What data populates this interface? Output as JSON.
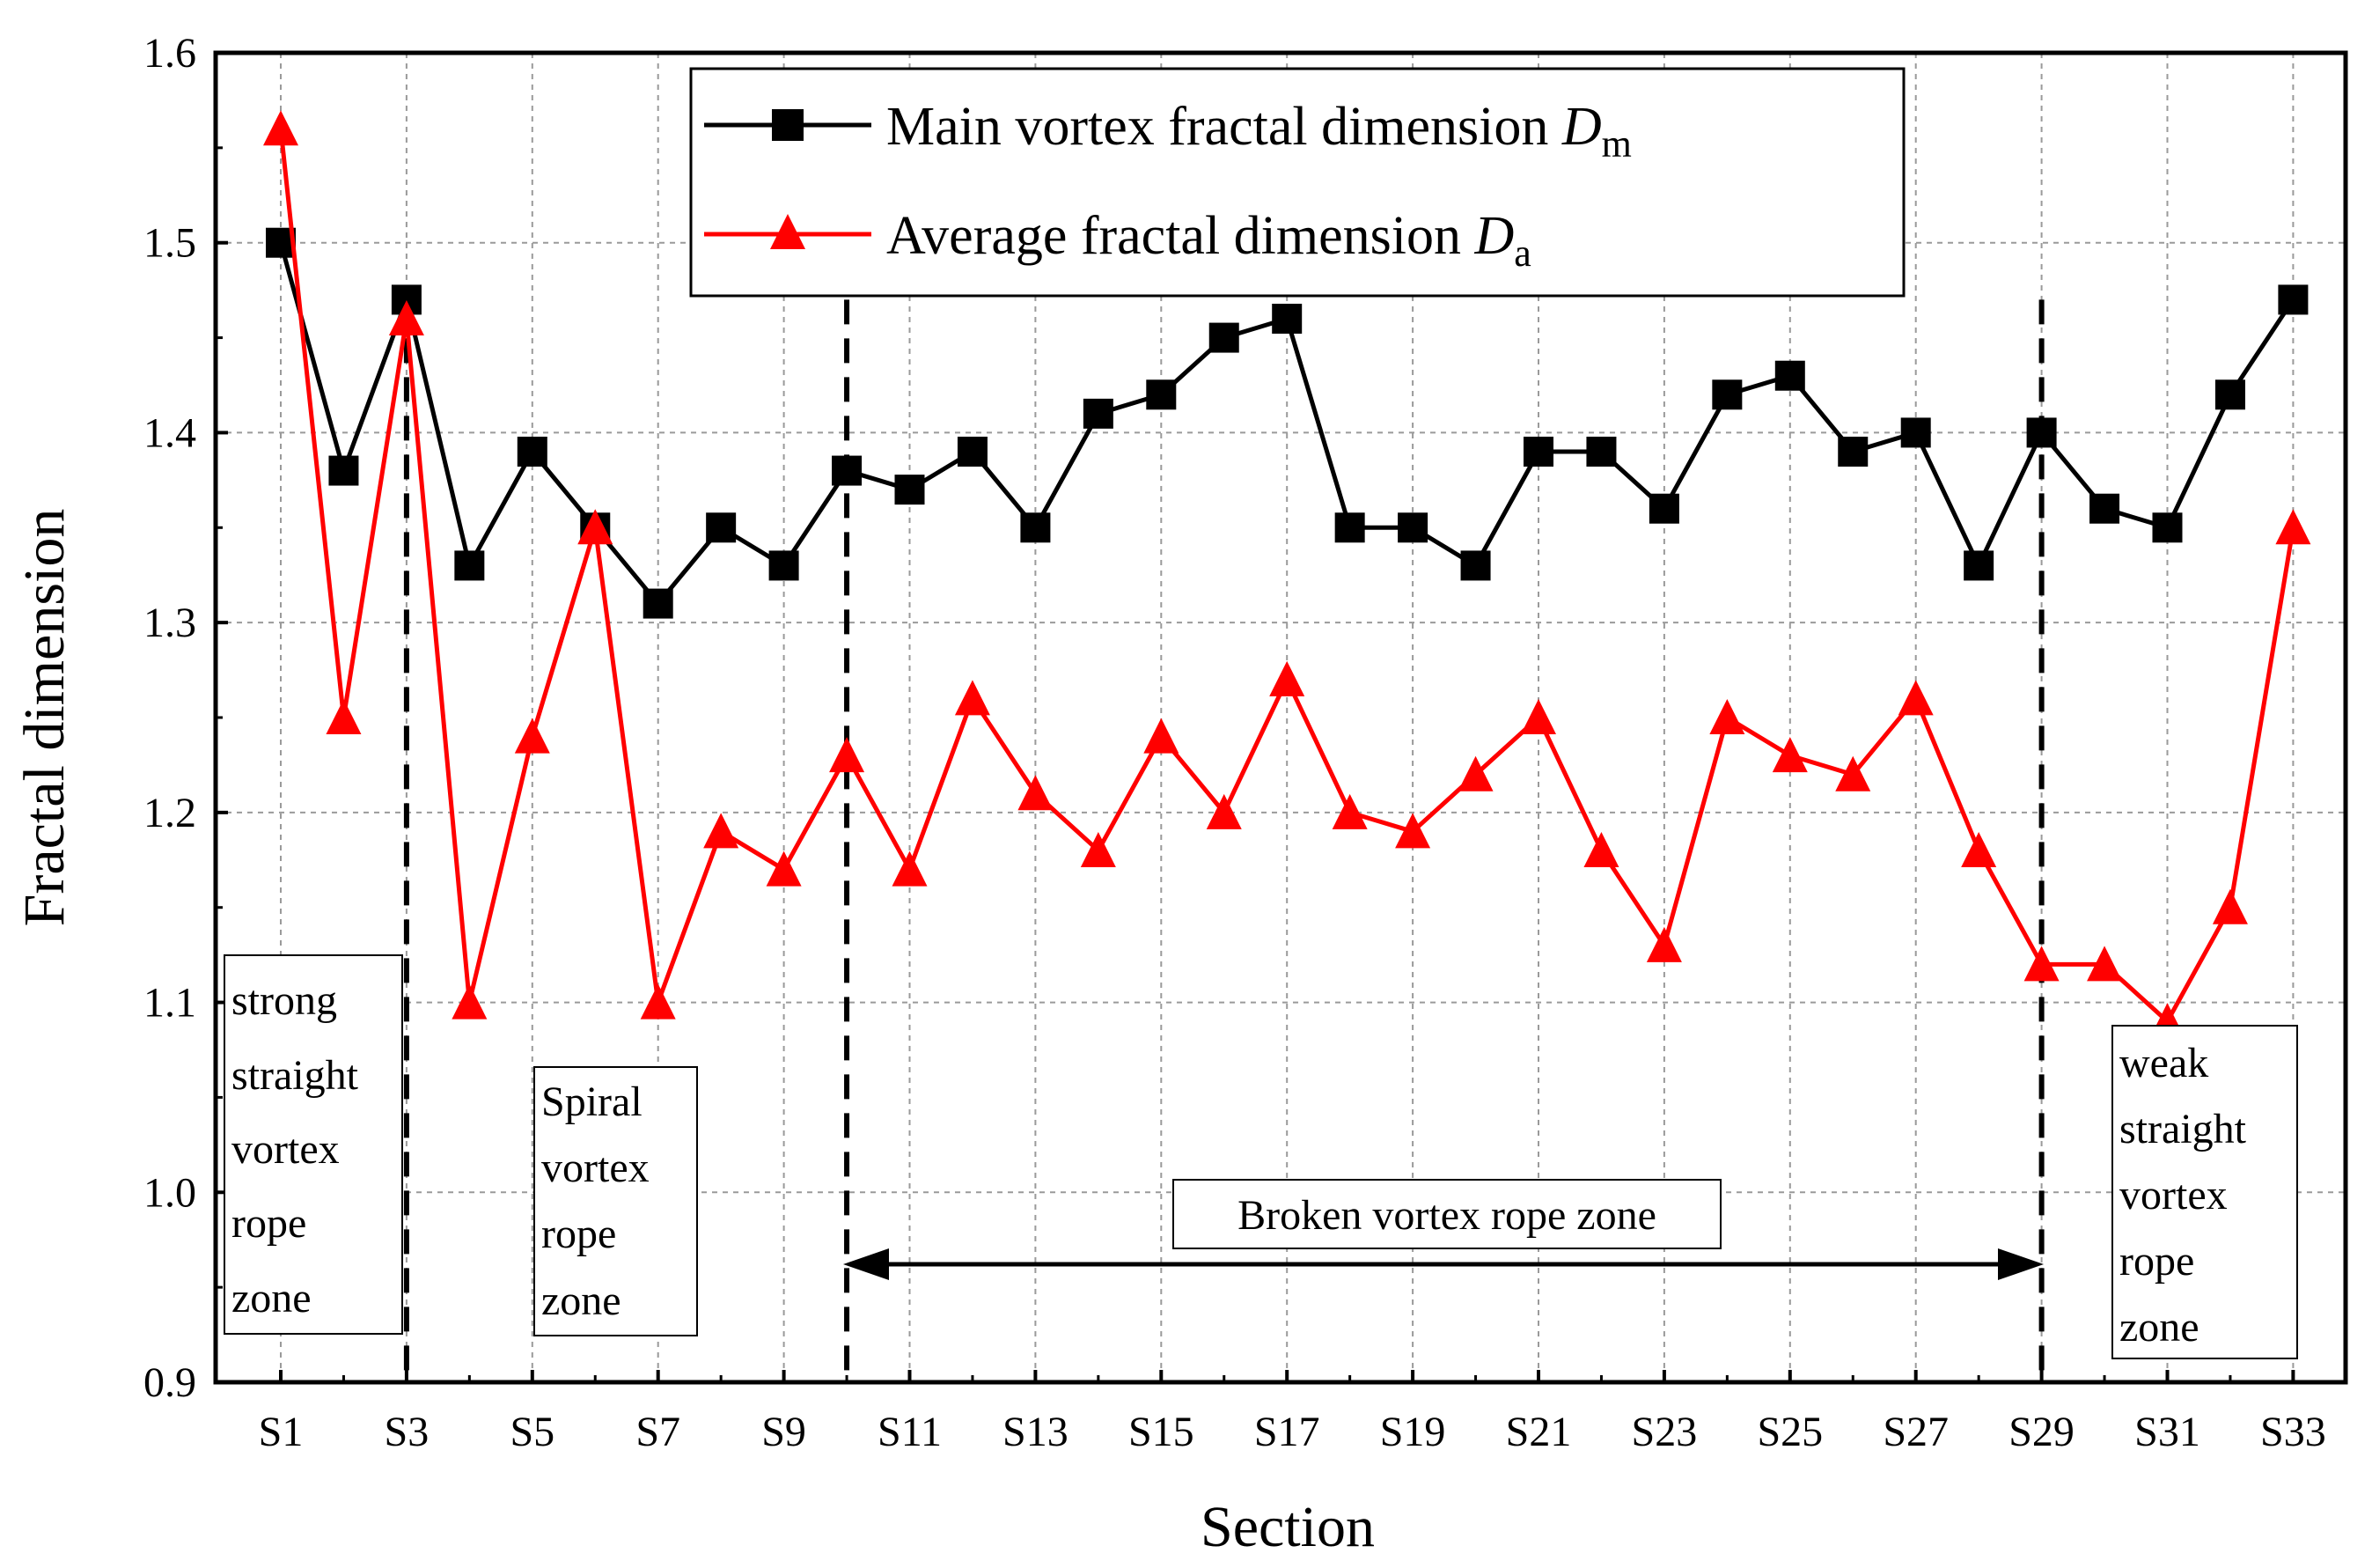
{
  "chart_data": {
    "type": "line",
    "xlabel": "Section",
    "ylabel": "Fractal dimension",
    "ylim": [
      0.9,
      1.6
    ],
    "yticks": [
      "0.9",
      "1.0",
      "1.1",
      "1.2",
      "1.3",
      "1.4",
      "1.5",
      "1.6"
    ],
    "x_tick_labels": [
      "S1",
      "S3",
      "S5",
      "S7",
      "S9",
      "S11",
      "S13",
      "S15",
      "S17",
      "S19",
      "S21",
      "S23",
      "S25",
      "S27",
      "S29",
      "S31",
      "S33"
    ],
    "categories": [
      "S1",
      "S2",
      "S3",
      "S4",
      "S5",
      "S6",
      "S7",
      "S8",
      "S9",
      "S10",
      "S11",
      "S12",
      "S13",
      "S14",
      "S15",
      "S16",
      "S17",
      "S18",
      "S19",
      "S20",
      "S21",
      "S22",
      "S23",
      "S24",
      "S25",
      "S26",
      "S27",
      "S28",
      "S29",
      "S30",
      "S31",
      "S32",
      "S33"
    ],
    "grid": true,
    "legend_position": "top-center",
    "series": [
      {
        "name_main": "Main vortex fractal dimension ",
        "name_symbol": "D",
        "name_subscript": "m",
        "marker": "square",
        "color": "#000000",
        "values": [
          1.5,
          1.38,
          1.47,
          1.33,
          1.39,
          1.35,
          1.31,
          1.35,
          1.33,
          1.38,
          1.37,
          1.39,
          1.35,
          1.41,
          1.42,
          1.45,
          1.46,
          1.35,
          1.35,
          1.33,
          1.39,
          1.39,
          1.36,
          1.42,
          1.43,
          1.39,
          1.4,
          1.33,
          1.4,
          1.36,
          1.35,
          1.42,
          1.47
        ]
      },
      {
        "name_main": "Average fractal dimension ",
        "name_symbol": "D",
        "name_subscript": "a",
        "marker": "triangle",
        "color": "#ff0000",
        "values": [
          1.56,
          1.25,
          1.46,
          1.1,
          1.24,
          1.35,
          1.1,
          1.19,
          1.17,
          1.23,
          1.17,
          1.26,
          1.21,
          1.18,
          1.24,
          1.2,
          1.27,
          1.2,
          1.19,
          1.22,
          1.25,
          1.18,
          1.13,
          1.25,
          1.23,
          1.22,
          1.26,
          1.18,
          1.12,
          1.12,
          1.09,
          1.15,
          1.35
        ]
      }
    ],
    "zone_dividers": [
      3,
      10,
      29
    ],
    "annotations": {
      "strong_zone": [
        "strong",
        "straight",
        "vortex",
        "rope",
        "zone"
      ],
      "spiral_zone": [
        "Spiral",
        "vortex",
        "rope",
        "zone"
      ],
      "broken_zone": "Broken vortex rope zone",
      "weak_zone": [
        "weak",
        "straight",
        "vortex",
        "rope",
        "zone"
      ]
    }
  }
}
